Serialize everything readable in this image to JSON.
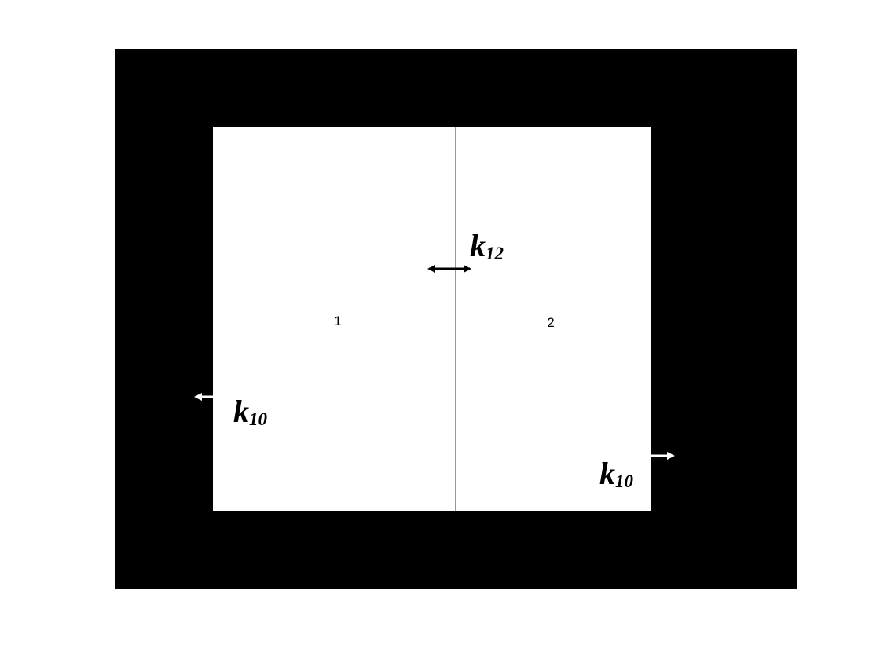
{
  "colors": {
    "background": "#ffffff",
    "outer_box": "#000000",
    "inner_box": "#ffffff",
    "divider": "#555555",
    "arrow_dark": "#000000",
    "arrow_light": "#ffffff",
    "text": "#000000"
  },
  "regions": {
    "left_label": "1",
    "right_label": "2"
  },
  "exchange": {
    "between": {
      "symbol": "k",
      "subscript": "12"
    },
    "left_out": {
      "symbol": "k",
      "subscript": "10"
    },
    "right_out": {
      "symbol": "k",
      "subscript": "10"
    }
  }
}
